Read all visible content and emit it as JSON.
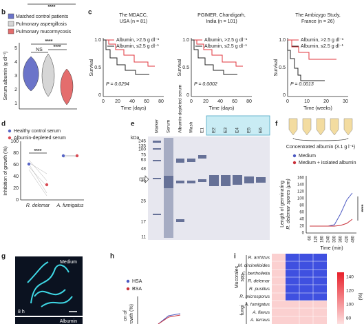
{
  "panels": {
    "a": {
      "annotation": "****"
    },
    "b": {
      "letter": "b",
      "legend": [
        "Matched control patients",
        "Pulmonary aspergillosis",
        "Pulmonary mucormycosis"
      ],
      "y_label": "Serum albumin (g dl⁻¹)",
      "yticks": [
        "1",
        "2",
        "3",
        "4",
        "5"
      ],
      "annotations": [
        "NS",
        "****",
        "****"
      ]
    },
    "c": {
      "letter": "c",
      "legend": [
        "Albumin, >2.5 g dl⁻¹",
        "Albumin, ≤2.5 g dl⁻¹"
      ],
      "y_label": "Survival",
      "yticks": [
        "0",
        "0.5",
        "1.0"
      ],
      "plots": [
        {
          "title": [
            "The MDACC,",
            "USA (n = 81)"
          ],
          "p_value": "P = 0.0294",
          "x_label": "Time (days)",
          "xticks": [
            "0",
            "20",
            "40",
            "60",
            "80"
          ]
        },
        {
          "title": [
            "PGIMER, Chandigarh,",
            "India (n = 101)"
          ],
          "p_value": "P = 0.0002",
          "x_label": "Time (days)",
          "xticks": [
            "0",
            "20",
            "40",
            "60",
            "80"
          ]
        },
        {
          "title": [
            "The Ambizygo Study,",
            "France (n = 26)"
          ],
          "p_value": "P = 0.0013",
          "x_label": "Time (weeks)",
          "xticks": [
            "0",
            "10",
            "20",
            "30"
          ]
        }
      ]
    },
    "d": {
      "letter": "d",
      "legend": [
        "Healthy control serum",
        "Albumin-depleted serum"
      ],
      "y_label": "Inhibition of growth (%)",
      "yticks": [
        "0",
        "20",
        "40",
        "60",
        "80",
        "100"
      ],
      "categories": [
        "R. delemar",
        "A. fumigatus"
      ],
      "annotation": "****"
    },
    "e": {
      "letter": "e",
      "unit": "kDa",
      "lanes": [
        "Marker",
        "Serum",
        "Albumin-depleted serum",
        "Wash",
        "E1",
        "E2",
        "E3",
        "E4",
        "E5",
        "E6"
      ],
      "ladder": [
        "245",
        "135",
        "100",
        "75",
        "63",
        "48",
        "35",
        "25",
        "17",
        "11"
      ]
    },
    "f": {
      "letter": "f",
      "caption": "Concentrated albumin (3.1 g l⁻¹)",
      "legend": [
        "Medium",
        "Medium + isolated albumin"
      ],
      "y_label": [
        "Length of germinating",
        "R. delemar spores (μm)"
      ],
      "yticks": [
        "0",
        "20",
        "40",
        "60",
        "80",
        "100",
        "120",
        "140",
        "160"
      ],
      "xticks": [
        "60",
        "120",
        "180",
        "240",
        "300",
        "360",
        "420",
        "480"
      ],
      "x_label": "Time (min)",
      "annotation": "****"
    },
    "g": {
      "letter": "g",
      "labels": [
        "Medium",
        "8 h",
        "Albumin"
      ]
    },
    "h": {
      "letter": "h",
      "legend": [
        "HSA",
        "BSA"
      ],
      "y_label": [
        "on of",
        "growth (%)"
      ]
    },
    "i": {
      "letter": "i",
      "group_labels": [
        "Mucorales",
        "spp.",
        "fungi"
      ],
      "rows": [
        "R. arrhizus",
        "M. circinelloides",
        "C. bertholletia",
        "R. delemar",
        "R. pusillus",
        "R. microsporus",
        "A. fumigatus",
        "A. flavus",
        "A. terreus"
      ],
      "colorbar_ticks": [
        "140",
        "120",
        "100",
        "80"
      ],
      "colorbar_label": "(%)"
    }
  }
}
